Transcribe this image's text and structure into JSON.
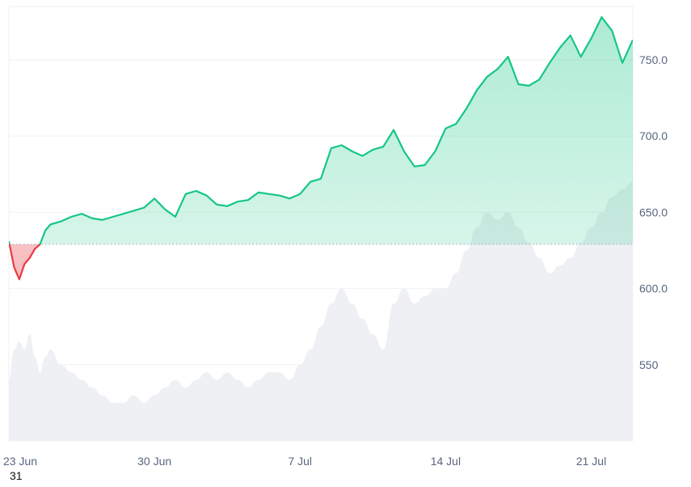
{
  "chart_data": {
    "type": "area",
    "title": "",
    "xlabel": "",
    "ylabel": "",
    "ylim": [
      500,
      785
    ],
    "y_ticks": [
      "550",
      "600.0",
      "650.0",
      "700.0",
      "750.0"
    ],
    "y_tick_values": [
      550,
      600,
      650,
      700,
      750
    ],
    "x_ticks": [
      "23 Jun",
      "30 Jun",
      "7 Jul",
      "14 Jul",
      "21 Jul"
    ],
    "x_tick_values": [
      "2024-06-23",
      "2024-06-30",
      "2024-07-07",
      "2024-07-14",
      "2024-07-21"
    ],
    "x_range": [
      "2024-06-23",
      "2024-07-23"
    ],
    "baseline": 629,
    "corner_label": "31",
    "grid": true,
    "colors": {
      "up_line": "#16c784",
      "down_line": "#ea3943",
      "up_fill": "#16c784",
      "down_fill": "#ea3943",
      "volume": "#eef0f3",
      "grid": "#eff2f5",
      "axis_text": "#58667e",
      "baseline": "#a7b1c2"
    },
    "series": [
      {
        "x": [
          "2024-06-23",
          "2024-06-23T06",
          "2024-06-23T12",
          "2024-06-23T18",
          "2024-06-24",
          "2024-06-24T06",
          "2024-06-24T12",
          "2024-06-24T18",
          "2024-06-25",
          "2024-06-25T12",
          "2024-06-26",
          "2024-06-26T12",
          "2024-06-27",
          "2024-06-27T12",
          "2024-06-28",
          "2024-06-28T12",
          "2024-06-29",
          "2024-06-29T12",
          "2024-06-30",
          "2024-06-30T12",
          "2024-07-01",
          "2024-07-01T12",
          "2024-07-02",
          "2024-07-02T12",
          "2024-07-03",
          "2024-07-03T12",
          "2024-07-04",
          "2024-07-04T12",
          "2024-07-05",
          "2024-07-05T12",
          "2024-07-06",
          "2024-07-06T12",
          "2024-07-07",
          "2024-07-07T12",
          "2024-07-08",
          "2024-07-08T12",
          "2024-07-09",
          "2024-07-09T12",
          "2024-07-10",
          "2024-07-10T12",
          "2024-07-11",
          "2024-07-11T12",
          "2024-07-12",
          "2024-07-12T12",
          "2024-07-13",
          "2024-07-13T12",
          "2024-07-14",
          "2024-07-14T12",
          "2024-07-15",
          "2024-07-15T12",
          "2024-07-16",
          "2024-07-16T12",
          "2024-07-17",
          "2024-07-17T12",
          "2024-07-18",
          "2024-07-18T12",
          "2024-07-19",
          "2024-07-19T12",
          "2024-07-20",
          "2024-07-20T12",
          "2024-07-21",
          "2024-07-21T12",
          "2024-07-22",
          "2024-07-22T12",
          "2024-07-23"
        ],
        "values": [
          631,
          614,
          606,
          616,
          620,
          626,
          629,
          638,
          642,
          644,
          647,
          649,
          646,
          645,
          647,
          649,
          651,
          653,
          659,
          652,
          647,
          662,
          664,
          661,
          655,
          654,
          657,
          658,
          663,
          662,
          661,
          659,
          662,
          670,
          672,
          692,
          694,
          690,
          687,
          691,
          693,
          704,
          690,
          680,
          681,
          690,
          705,
          708,
          718,
          730,
          739,
          744,
          752,
          734,
          733,
          737,
          748,
          758,
          766,
          752,
          764,
          778,
          769,
          748,
          763
        ],
        "volume": [
          540,
          560,
          565,
          560,
          570,
          555,
          545,
          555,
          560,
          550,
          545,
          540,
          535,
          530,
          525,
          525,
          530,
          525,
          530,
          535,
          540,
          535,
          540,
          545,
          540,
          545,
          540,
          535,
          540,
          545,
          545,
          540,
          550,
          560,
          575,
          590,
          600,
          590,
          580,
          570,
          560,
          590,
          600,
          590,
          595,
          600,
          600,
          610,
          625,
          640,
          650,
          645,
          650,
          640,
          630,
          620,
          610,
          615,
          620,
          630,
          640,
          650,
          660,
          665,
          670
        ]
      }
    ]
  }
}
